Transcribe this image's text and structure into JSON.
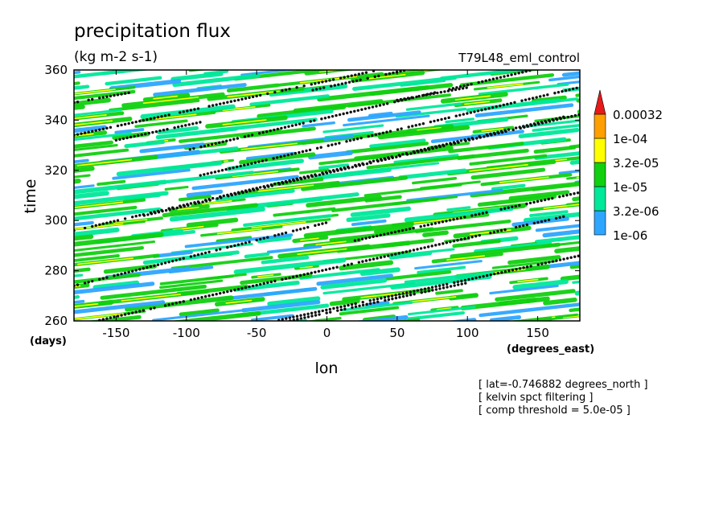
{
  "chart_data": {
    "type": "heatmap",
    "title": "precipitation flux",
    "units": "(kg m-2 s-1)",
    "run_label": "T79L48_eml_control",
    "xlabel": "lon",
    "xunits": "(degrees_east)",
    "ylabel": "time",
    "yunits": "(days)",
    "xlim": [
      -180,
      180
    ],
    "ylim": [
      260,
      360
    ],
    "xticks": [
      -150,
      -100,
      -50,
      0,
      50,
      100,
      150
    ],
    "yticks": [
      260,
      280,
      300,
      320,
      340,
      360
    ],
    "colorbar": {
      "levels": [
        "1e-06",
        "3.2e-06",
        "1e-05",
        "3.2e-05",
        "1e-04",
        "0.00032"
      ],
      "colors": [
        "#2ea6ff",
        "#00e89a",
        "#10d010",
        "#ffff00",
        "#ff9f00",
        "#e61a1a"
      ]
    },
    "info_lines": [
      "[ lat=-0.746882 degrees_north ]",
      "[ kelvin spct filtering ]",
      "[ comp threshold = 5.0e-05 ]"
    ]
  }
}
